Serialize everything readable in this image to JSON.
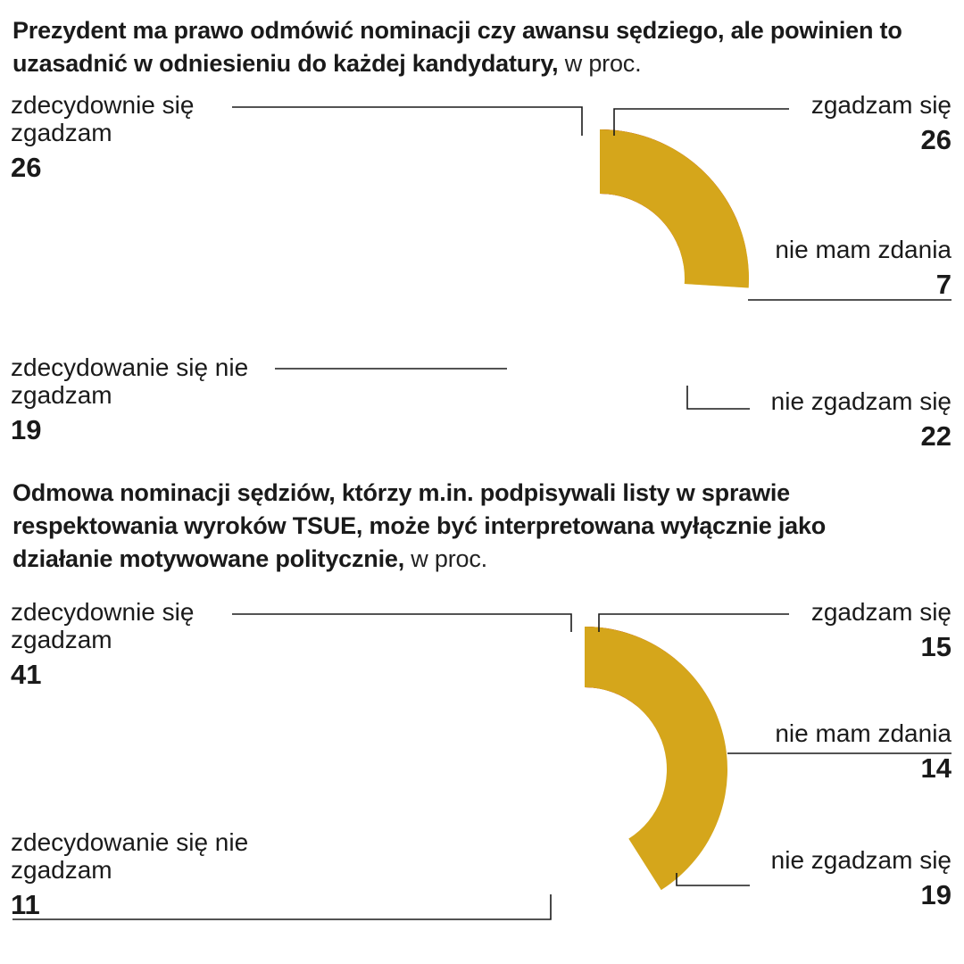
{
  "page": {
    "background": "#ffffff",
    "unit_note": "w proc."
  },
  "chart_data": [
    {
      "type": "pie",
      "subtype": "donut",
      "title": "Prezydent ma prawo odmówić nominacji czy awansu sędziego, ale powinien to uzasadnić w odniesieniu do każdej kandydatury,",
      "title_suffix": " w proc.",
      "categories": [
        "zgadzam się",
        "nie mam zdania",
        "nie zgadzam się",
        "zdecydowanie się nie zgadzam",
        "zdecydownie się zgadzam"
      ],
      "values": [
        26,
        7,
        22,
        19,
        26
      ],
      "colors": [
        "#F6DF85",
        "#C9C9C9",
        "#D6736C",
        "#B11B28",
        "#D5A61B"
      ],
      "start_angle_deg": 0,
      "direction": "clockwise",
      "legend": "callout-labels"
    },
    {
      "type": "pie",
      "subtype": "donut",
      "title": "Odmowa nominacji sędziów, którzy m.in. podpisywali listy w sprawie respektowania wyroków TSUE, może być interpretowana wyłącznie jako działanie motywowane politycznie,",
      "title_suffix": " w proc.",
      "categories": [
        "zgadzam się",
        "nie mam zdania",
        "nie zgadzam się",
        "zdecydowanie się nie zgadzam",
        "zdecydownie się zgadzam"
      ],
      "values": [
        15,
        14,
        19,
        11,
        41
      ],
      "colors": [
        "#F6DF85",
        "#C9C9C9",
        "#D6736C",
        "#B11B28",
        "#D5A61B"
      ],
      "start_angle_deg": 0,
      "direction": "clockwise",
      "legend": "callout-labels"
    }
  ]
}
